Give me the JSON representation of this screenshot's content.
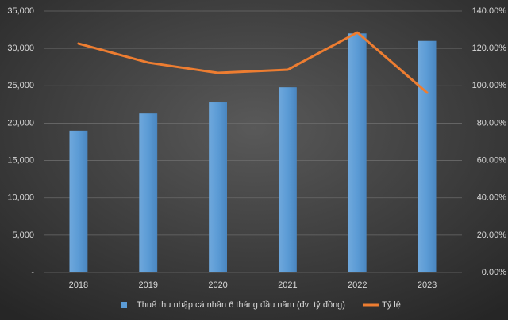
{
  "chart_data": {
    "type": "bar",
    "categories": [
      "2018",
      "2019",
      "2020",
      "2021",
      "2022",
      "2023"
    ],
    "series": [
      {
        "name": "Thuế thu nhập cá nhân 6 tháng đầu năm (đv: tỷ đồng)",
        "color": "#5b9bd5",
        "type": "bar",
        "values": [
          19000,
          21300,
          22800,
          24800,
          32000,
          31000
        ]
      },
      {
        "name": "Tỷ lệ",
        "color": "#ed7d31",
        "type": "line",
        "axis": "y2",
        "values": [
          122.6,
          112.4,
          106.9,
          108.6,
          128.5,
          96.3
        ]
      }
    ],
    "ylim": [
      0,
      35000
    ],
    "yticks": [
      {
        "value": 0,
        "label": "-"
      },
      {
        "value": 5000,
        "label": "5,000"
      },
      {
        "value": 10000,
        "label": "10,000"
      },
      {
        "value": 15000,
        "label": "15,000"
      },
      {
        "value": 20000,
        "label": "20,000"
      },
      {
        "value": 25000,
        "label": "25,000"
      },
      {
        "value": 30000,
        "label": "30,000"
      },
      {
        "value": 35000,
        "label": "35,000"
      }
    ],
    "y2lim": [
      0,
      140
    ],
    "y2ticks": [
      {
        "value": 0,
        "label": "0.00%"
      },
      {
        "value": 20,
        "label": "20.00%"
      },
      {
        "value": 40,
        "label": "40.00%"
      },
      {
        "value": 60,
        "label": "60.00%"
      },
      {
        "value": 80,
        "label": "80.00%"
      },
      {
        "value": 100,
        "label": "100.00%"
      },
      {
        "value": 120,
        "label": "120.00%"
      },
      {
        "value": 140,
        "label": "140.00%"
      }
    ],
    "grid": true,
    "legend": "bottom"
  }
}
